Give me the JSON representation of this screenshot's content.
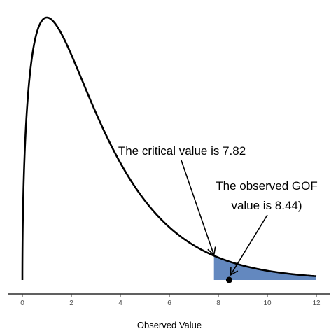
{
  "chart_data": {
    "type": "area",
    "title": "",
    "xlabel": "Observed Value",
    "ylabel": "",
    "xlim": [
      0,
      12
    ],
    "ylim": [
      0,
      0.25
    ],
    "x_ticks": [
      0,
      2,
      4,
      6,
      8,
      10,
      12
    ],
    "grid": false,
    "legend": "none",
    "distribution": {
      "family": "chi-square",
      "df": 3
    },
    "shaded_region": {
      "from": 7.82,
      "to": 12,
      "color": "#6388bf"
    },
    "critical_value": 7.82,
    "observed_value": 8.44,
    "annotations": [
      {
        "id": "critical",
        "lines": [
          "The critical value is 7.82"
        ],
        "points_to": "critical_value"
      },
      {
        "id": "observed",
        "lines": [
          "The observed GOF",
          "value is 8.44)"
        ],
        "points_to": "observed_value"
      }
    ],
    "colors": {
      "curve": "#000000",
      "fill": "#6388bf",
      "point": "#000000",
      "axis": "#000000"
    }
  }
}
